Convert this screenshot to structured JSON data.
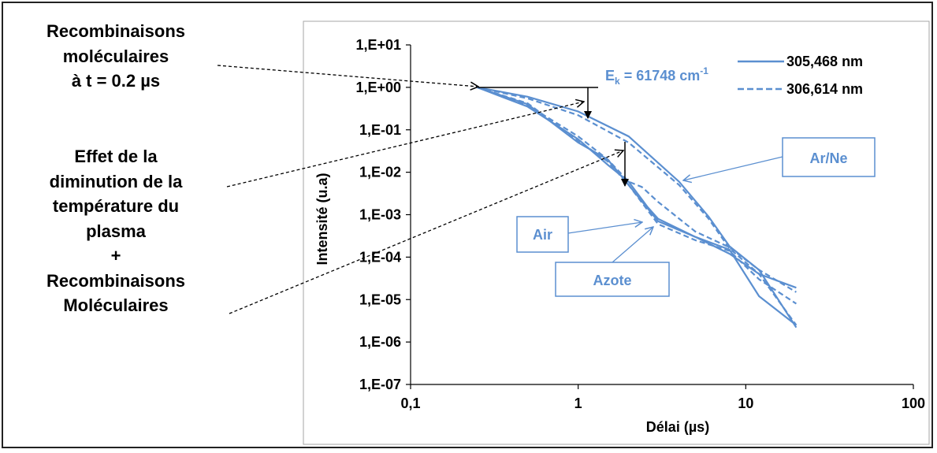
{
  "annotations": {
    "recomb_line1": "Recombinaisons",
    "recomb_line2": "moléculaires",
    "recomb_line3": "à t = 0.2 µs",
    "effet_line1": "Effet de la",
    "effet_line2": "diminution de la",
    "effet_line3": "température du",
    "effet_line4": "plasma",
    "effet_line5": "+",
    "effet_line6": "Recombinaisons",
    "effet_line7": "Moléculaires"
  },
  "chart_data": {
    "type": "line",
    "xlabel": "Délai (µs)",
    "ylabel": "Intensité (u.a)",
    "xscale": "log",
    "yscale": "log",
    "xlim": [
      0.1,
      100
    ],
    "ylim": [
      1e-07,
      10
    ],
    "xticks": [
      0.1,
      1,
      10,
      100
    ],
    "xtick_labels": [
      "0,1",
      "1",
      "10",
      "100"
    ],
    "yticks": [
      1e-07,
      1e-06,
      1e-05,
      0.0001,
      0.001,
      0.01,
      0.1,
      1,
      10
    ],
    "ytick_labels": [
      "1,E-07",
      "1,E-06",
      "1,E-05",
      "1,E-04",
      "1,E-03",
      "1,E-02",
      "1,E-01",
      "1,E+00",
      "1,E+01"
    ],
    "grid": false,
    "legend_position": "top-right",
    "legend": [
      "305,468 nm",
      "306,614 nm"
    ],
    "energy_label": "E",
    "energy_sub": "k",
    "energy_value": " = 61748 cm",
    "energy_sup": "-1",
    "labels": {
      "ar_ne": "Ar/Ne",
      "air": "Air",
      "azote": "Azote"
    },
    "color": "#5b8fd0",
    "series": [
      {
        "name": "305,468 nm",
        "group": "Ar/Ne",
        "style": "solid",
        "x": [
          0.25,
          0.5,
          1.0,
          2.0,
          4.0,
          6.0,
          8.0,
          12.0,
          20.0
        ],
        "y": [
          1.0,
          0.6,
          0.27,
          0.07,
          0.006,
          0.0009,
          0.00018,
          5e-05,
          2.2e-06
        ]
      },
      {
        "name": "306,614 nm",
        "group": "Ar/Ne",
        "style": "dashed",
        "x": [
          0.25,
          0.5,
          1.0,
          2.0,
          4.0,
          6.0,
          8.0,
          12.0,
          20.0
        ],
        "y": [
          1.0,
          0.55,
          0.22,
          0.05,
          0.005,
          0.0008,
          0.00016,
          4e-05,
          2.5e-06
        ]
      },
      {
        "name": "305,468 nm",
        "group": "Air",
        "style": "solid",
        "x": [
          0.25,
          0.5,
          1.0,
          1.5,
          2.0,
          2.6,
          3.0,
          5.0,
          8.0,
          12.0,
          20.0
        ],
        "y": [
          1.0,
          0.35,
          0.06,
          0.015,
          0.006,
          0.0015,
          0.0008,
          0.0003,
          0.00015,
          1.2e-05,
          2.5e-06
        ]
      },
      {
        "name": "306,614 nm",
        "group": "Air",
        "style": "dashed",
        "x": [
          0.25,
          0.5,
          1.0,
          1.5,
          2.0,
          2.4,
          3.0,
          5.0,
          8.0,
          12.0,
          20.0
        ],
        "y": [
          1.0,
          0.38,
          0.07,
          0.02,
          0.006,
          0.0045,
          0.002,
          0.0004,
          0.00017,
          5e-05,
          1.5e-05
        ]
      },
      {
        "name": "305,468 nm",
        "group": "Azote",
        "style": "solid",
        "x": [
          0.25,
          0.5,
          1.0,
          1.5,
          2.0,
          3.0,
          5.0,
          8.0,
          12.0,
          20.0
        ],
        "y": [
          1.0,
          0.4,
          0.05,
          0.02,
          0.005,
          0.0007,
          0.0003,
          0.00012,
          4e-05,
          1.9e-05
        ]
      },
      {
        "name": "306,614 nm",
        "group": "Azote",
        "style": "dashed",
        "x": [
          0.25,
          0.5,
          1.0,
          1.5,
          2.0,
          3.0,
          5.0,
          8.0,
          12.0,
          20.0
        ],
        "y": [
          1.0,
          0.42,
          0.055,
          0.018,
          0.005,
          0.0006,
          0.00025,
          0.00014,
          3e-05,
          8e-06
        ]
      }
    ]
  }
}
